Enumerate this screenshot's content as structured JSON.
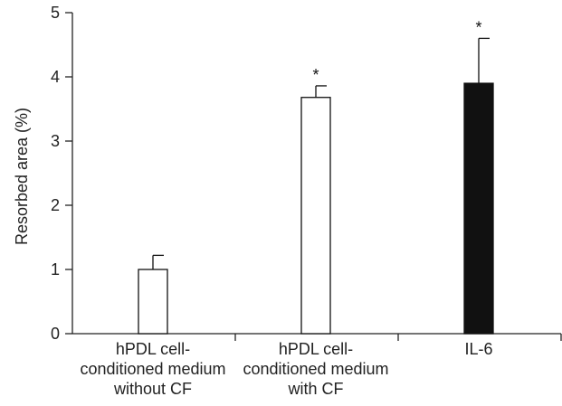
{
  "chart_data": {
    "type": "bar",
    "ylabel": "Resorbed area (%)",
    "ylim": [
      0,
      5
    ],
    "yticks": [
      "0",
      "1",
      "2",
      "3",
      "4",
      "5"
    ],
    "grid": false,
    "categories": [
      [
        "hPDL cell-",
        "conditioned medium",
        "without CF"
      ],
      [
        "hPDL cell-",
        "conditioned medium",
        "with  CF"
      ],
      [
        "IL-6"
      ]
    ],
    "values": [
      1.0,
      3.68,
      3.9
    ],
    "error": [
      0.22,
      0.18,
      0.7
    ],
    "significance": [
      "",
      "*",
      "*"
    ],
    "bar_colors": [
      "#ffffff",
      "#ffffff",
      "#111111"
    ]
  }
}
